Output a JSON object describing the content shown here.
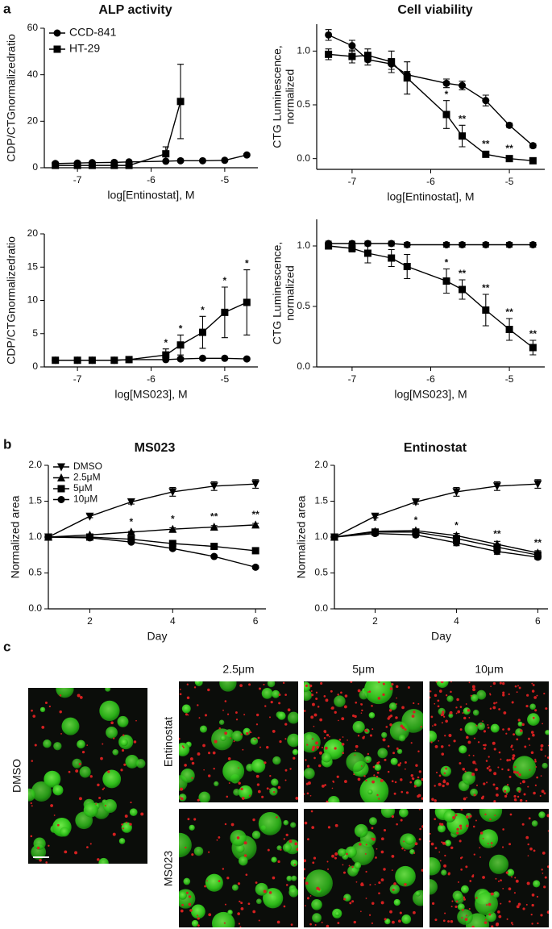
{
  "panel_labels": [
    "a",
    "b",
    "c"
  ],
  "images": {
    "columns": [
      "2.5μm",
      "5μm",
      "10μm"
    ],
    "rows": [
      "Entinostat",
      "MS023"
    ],
    "control": "DMSO"
  },
  "chart_data": [
    {
      "type": "line",
      "title": "ALP activity",
      "xlabel": "log[Entinostat], M",
      "ylabel": [
        "CDP/CTGnormalizedratio"
      ],
      "x": [
        -7.3,
        -7.0,
        -6.8,
        -6.5,
        -6.3,
        -5.8,
        -5.6,
        -5.3,
        -5.0,
        -4.7
      ],
      "xlim": [
        -7.45,
        -4.55
      ],
      "xticks": [
        -7,
        -6,
        -5
      ],
      "ylim": [
        0,
        60
      ],
      "yticks": [
        0,
        20,
        40,
        60
      ],
      "legend": "top-left",
      "series": [
        {
          "name": "CCD-841",
          "color": "#000000",
          "marker": "circle",
          "values": [
            1.8,
            2.0,
            2.2,
            2.3,
            2.5,
            2.8,
            3.0,
            3.0,
            3.2,
            5.5
          ],
          "errors": [
            0.2,
            0.2,
            0.2,
            0.2,
            0.2,
            0.3,
            0.3,
            0.3,
            0.3,
            0.5
          ]
        },
        {
          "name": "HT-29",
          "color": "#000000",
          "marker": "square",
          "values": [
            1.0,
            1.0,
            1.0,
            1.0,
            1.0,
            6.0,
            28.5,
            null,
            null,
            null
          ],
          "errors": [
            0.3,
            0.3,
            0.3,
            0.3,
            0.3,
            3.0,
            16.0,
            null,
            null,
            null
          ]
        }
      ]
    },
    {
      "type": "line",
      "title": "Cell viability",
      "xlabel": "log[Entinostat], M",
      "ylabel": [
        "CTG Luminescence,",
        "normalized"
      ],
      "x": [
        -7.3,
        -7.0,
        -6.8,
        -6.5,
        -6.3,
        -5.8,
        -5.6,
        -5.3,
        -5.0,
        -4.7
      ],
      "xlim": [
        -7.45,
        -4.55
      ],
      "xticks": [
        -7,
        -6,
        -5
      ],
      "ylim": [
        -0.1,
        1.25
      ],
      "yticks": [
        {
          "value": 0,
          "label": "0.0"
        },
        {
          "value": 0.5,
          "label": "0.5"
        },
        {
          "value": 1,
          "label": "1.0"
        }
      ],
      "series": [
        {
          "color": "#000000",
          "marker": "circle",
          "values": [
            1.15,
            1.05,
            0.92,
            0.88,
            0.78,
            0.7,
            0.68,
            0.54,
            0.31,
            0.12
          ],
          "errors": [
            0.05,
            0.05,
            0.05,
            0.05,
            0.03,
            0.04,
            0.04,
            0.05,
            0.02,
            0.02
          ]
        },
        {
          "color": "#000000",
          "marker": "square",
          "values": [
            0.97,
            0.95,
            0.96,
            0.9,
            0.75,
            0.41,
            0.21,
            0.04,
            0.0,
            -0.02
          ],
          "errors": [
            0.05,
            0.06,
            0.06,
            0.1,
            0.15,
            0.13,
            0.1,
            0.02,
            0.02,
            0.02
          ],
          "significance": [
            null,
            null,
            null,
            null,
            null,
            "*",
            "**",
            "**",
            "**",
            null
          ]
        }
      ]
    },
    {
      "type": "line",
      "xlabel": "log[MS023], M",
      "ylabel": [
        "CDP/CTGnormalizedratio"
      ],
      "x": [
        -7.3,
        -7.0,
        -6.8,
        -6.5,
        -6.3,
        -5.8,
        -5.6,
        -5.3,
        -5.0,
        -4.7
      ],
      "xlim": [
        -7.45,
        -4.55
      ],
      "xticks": [
        -7,
        -6,
        -5
      ],
      "ylim": [
        0,
        20
      ],
      "yticks": [
        0,
        5,
        10,
        15,
        20
      ],
      "series": [
        {
          "color": "#000000",
          "marker": "circle",
          "values": [
            1.0,
            1.0,
            1.0,
            1.0,
            1.1,
            1.1,
            1.2,
            1.3,
            1.3,
            1.2
          ],
          "errors": [
            0.1,
            0.1,
            0.1,
            0.1,
            0.1,
            0.1,
            0.1,
            0.1,
            0.1,
            0.1
          ]
        },
        {
          "color": "#000000",
          "marker": "square",
          "values": [
            1.0,
            1.0,
            1.0,
            1.0,
            1.1,
            1.8,
            3.3,
            5.2,
            8.2,
            9.7
          ],
          "errors": [
            0.3,
            0.3,
            0.2,
            0.2,
            0.3,
            0.9,
            1.5,
            2.4,
            3.8,
            4.9
          ],
          "significance": [
            null,
            null,
            null,
            null,
            null,
            "*",
            "*",
            "*",
            "*",
            "*"
          ]
        }
      ]
    },
    {
      "type": "line",
      "xlabel": "log[MS023], M",
      "ylabel": [
        "CTG Luminescence,",
        "normalized"
      ],
      "x": [
        -7.3,
        -7.0,
        -6.8,
        -6.5,
        -6.3,
        -5.8,
        -5.6,
        -5.3,
        -5.0,
        -4.7
      ],
      "xlim": [
        -7.45,
        -4.55
      ],
      "xticks": [
        -7,
        -6,
        -5
      ],
      "ylim": [
        0,
        1.22
      ],
      "yticks": [
        {
          "value": 0,
          "label": "0.0"
        },
        {
          "value": 0.5,
          "label": "0.5"
        },
        {
          "value": 1,
          "label": "1.0"
        }
      ],
      "series": [
        {
          "color": "#000000",
          "marker": "circle",
          "values": [
            1.02,
            1.02,
            1.02,
            1.02,
            1.01,
            1.01,
            1.01,
            1.01,
            1.01,
            1.01
          ],
          "errors": [
            0.02,
            0.02,
            0.02,
            0.02,
            0.02,
            0.02,
            0.02,
            0.02,
            0.02,
            0.02
          ]
        },
        {
          "color": "#000000",
          "marker": "square",
          "values": [
            1.0,
            0.98,
            0.94,
            0.9,
            0.83,
            0.71,
            0.64,
            0.47,
            0.31,
            0.16
          ],
          "errors": [
            0.02,
            0.03,
            0.08,
            0.07,
            0.1,
            0.1,
            0.08,
            0.13,
            0.09,
            0.06
          ],
          "significance": [
            null,
            null,
            null,
            null,
            null,
            "*",
            "**",
            "**",
            "**",
            "**"
          ]
        }
      ]
    },
    {
      "type": "line",
      "title": "MS023",
      "xlabel": "Day",
      "ylabel": [
        "Normalized area"
      ],
      "x": [
        1,
        2,
        3,
        4,
        5,
        6
      ],
      "xlim": [
        1,
        6.25
      ],
      "xticks": [
        2,
        4,
        6
      ],
      "ylim": [
        0,
        2
      ],
      "yticks": [
        {
          "value": 0,
          "label": "0.0"
        },
        {
          "value": 0.5,
          "label": "0.5"
        },
        {
          "value": 1,
          "label": "1.0"
        },
        {
          "value": 1.5,
          "label": "1.5"
        },
        {
          "value": 2,
          "label": "2.0"
        }
      ],
      "legend": "top-left",
      "series": [
        {
          "name": "DMSO",
          "color": "#000000",
          "marker": "triangle-down",
          "values": [
            1.0,
            1.29,
            1.49,
            1.63,
            1.71,
            1.74
          ],
          "errors": [
            0,
            0.02,
            0.03,
            0.06,
            0.06,
            0.06
          ]
        },
        {
          "name": "2.5μM",
          "color": "#000000",
          "marker": "triangle-up",
          "values": [
            1.0,
            1.03,
            1.07,
            1.11,
            1.14,
            1.17
          ],
          "errors": [
            0,
            0.01,
            0.01,
            0.02,
            0.02,
            0.02
          ],
          "significance": [
            null,
            null,
            "*",
            "*",
            "**",
            "**"
          ]
        },
        {
          "name": "5μM",
          "color": "#000000",
          "marker": "square",
          "values": [
            1.0,
            1.0,
            0.97,
            0.91,
            0.87,
            0.81
          ],
          "errors": [
            0,
            0.01,
            0.01,
            0.02,
            0.02,
            0.02
          ]
        },
        {
          "name": "10μM",
          "color": "#000000",
          "marker": "circle",
          "values": [
            1.0,
            0.99,
            0.93,
            0.84,
            0.73,
            0.58
          ],
          "errors": [
            0,
            0.01,
            0.01,
            0.02,
            0.02,
            0.02
          ]
        }
      ]
    },
    {
      "type": "line",
      "title": "Entinostat",
      "xlabel": "Day",
      "ylabel": [
        "Normalized area"
      ],
      "x": [
        1,
        2,
        3,
        4,
        5,
        6
      ],
      "xlim": [
        1,
        6.25
      ],
      "xticks": [
        2,
        4,
        6
      ],
      "ylim": [
        0,
        2
      ],
      "yticks": [
        {
          "value": 0,
          "label": "0.0"
        },
        {
          "value": 0.5,
          "label": "0.5"
        },
        {
          "value": 1,
          "label": "1.0"
        },
        {
          "value": 1.5,
          "label": "1.5"
        },
        {
          "value": 2,
          "label": "2.0"
        }
      ],
      "series": [
        {
          "color": "#000000",
          "marker": "triangle-down",
          "values": [
            1.0,
            1.29,
            1.49,
            1.63,
            1.71,
            1.74
          ],
          "errors": [
            0,
            0.02,
            0.03,
            0.06,
            0.06,
            0.06
          ]
        },
        {
          "color": "#000000",
          "marker": "triangle-up",
          "values": [
            1.0,
            1.08,
            1.09,
            1.02,
            0.9,
            0.78
          ],
          "errors": [
            0,
            0.02,
            0.02,
            0.03,
            0.04,
            0.03
          ],
          "significance": [
            null,
            "*",
            "*",
            "*",
            "**",
            "**"
          ]
        },
        {
          "color": "#000000",
          "marker": "square",
          "values": [
            1.0,
            1.07,
            1.07,
            0.98,
            0.86,
            0.75
          ],
          "errors": [
            0,
            0.02,
            0.02,
            0.03,
            0.04,
            0.03
          ]
        },
        {
          "color": "#000000",
          "marker": "circle",
          "values": [
            1.0,
            1.05,
            1.03,
            0.92,
            0.8,
            0.72
          ],
          "errors": [
            0,
            0.02,
            0.03,
            0.04,
            0.04,
            0.03
          ]
        }
      ]
    }
  ]
}
